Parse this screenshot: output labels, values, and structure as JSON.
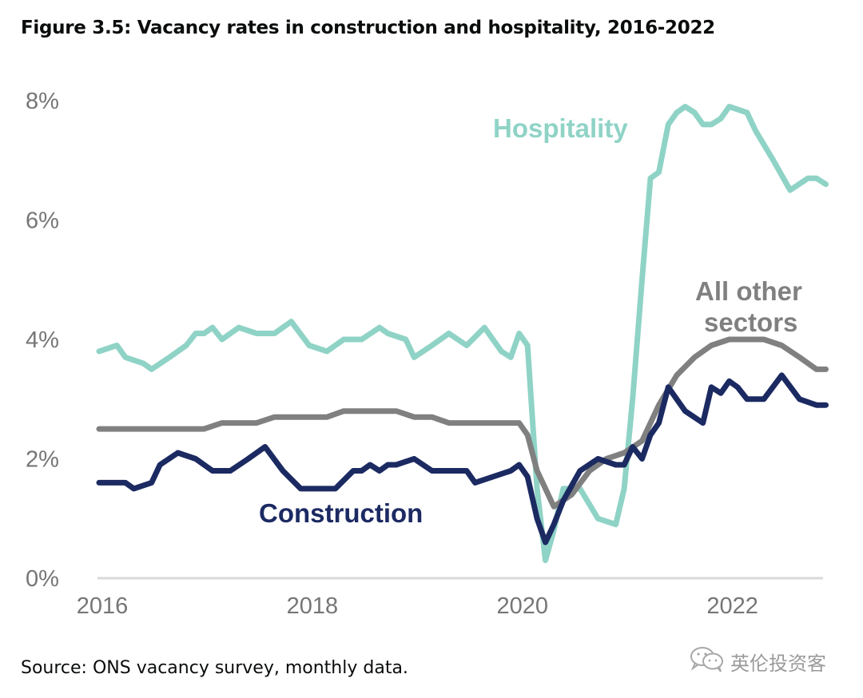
{
  "title": "Figure 3.5: Vacancy rates in construction and hospitality, 2016-2022",
  "source": "Source: ONS vacancy survey, monthly data.",
  "watermark": {
    "icon": "wechat-icon",
    "text": "英伦投资客"
  },
  "chart_data": {
    "type": "line",
    "title": "Figure 3.5: Vacancy rates in construction and hospitality, 2016-2022",
    "xlabel": "",
    "ylabel": "",
    "xlim": [
      2016.0,
      2023.0
    ],
    "ylim": [
      0,
      8
    ],
    "grid": false,
    "y_ticks": [
      0,
      2,
      4,
      6,
      8
    ],
    "y_tick_labels": [
      "0%",
      "2%",
      "4%",
      "6%",
      "8%"
    ],
    "x_ticks": [
      2016,
      2018,
      2020,
      2022
    ],
    "x_tick_labels": [
      "2016",
      "2018",
      "2020",
      "2022"
    ],
    "legend": "inline-labels",
    "series": [
      {
        "name": "Hospitality",
        "label": "Hospitality",
        "color": "#8fd3c6",
        "x": [
          2016.0,
          2016.17,
          2016.25,
          2016.42,
          2016.5,
          2016.67,
          2016.83,
          2016.92,
          2017.0,
          2017.08,
          2017.17,
          2017.33,
          2017.5,
          2017.67,
          2017.83,
          2018.0,
          2018.17,
          2018.33,
          2018.5,
          2018.67,
          2018.75,
          2018.92,
          2019.0,
          2019.17,
          2019.33,
          2019.5,
          2019.67,
          2019.83,
          2019.92,
          2020.0,
          2020.08,
          2020.17,
          2020.25,
          2020.33,
          2020.42,
          2020.58,
          2020.75,
          2020.92,
          2021.0,
          2021.08,
          2021.17,
          2021.25,
          2021.33,
          2021.42,
          2021.5,
          2021.58,
          2021.67,
          2021.75,
          2021.83,
          2021.92,
          2022.0,
          2022.17,
          2022.25,
          2022.42,
          2022.58,
          2022.75,
          2022.83,
          2022.92
        ],
        "values": [
          3.8,
          3.9,
          3.7,
          3.6,
          3.5,
          3.7,
          3.9,
          4.1,
          4.1,
          4.2,
          4.0,
          4.2,
          4.1,
          4.1,
          4.3,
          3.9,
          3.8,
          4.0,
          4.0,
          4.2,
          4.1,
          4.0,
          3.7,
          3.9,
          4.1,
          3.9,
          4.2,
          3.8,
          3.7,
          4.1,
          3.9,
          1.5,
          0.3,
          0.8,
          1.5,
          1.5,
          1.0,
          0.9,
          1.5,
          3.0,
          5.0,
          6.7,
          6.8,
          7.6,
          7.8,
          7.9,
          7.8,
          7.6,
          7.6,
          7.7,
          7.9,
          7.8,
          7.5,
          7.0,
          6.5,
          6.7,
          6.7,
          6.6
        ]
      },
      {
        "name": "All other sectors",
        "label": "All other sectors",
        "color": "#808080",
        "x": [
          2016.0,
          2016.17,
          2016.33,
          2016.5,
          2016.67,
          2016.83,
          2017.0,
          2017.17,
          2017.33,
          2017.5,
          2017.67,
          2017.83,
          2018.0,
          2018.17,
          2018.33,
          2018.5,
          2018.67,
          2018.83,
          2019.0,
          2019.17,
          2019.33,
          2019.5,
          2019.67,
          2019.83,
          2020.0,
          2020.08,
          2020.17,
          2020.33,
          2020.5,
          2020.67,
          2020.83,
          2021.0,
          2021.17,
          2021.33,
          2021.5,
          2021.67,
          2021.83,
          2022.0,
          2022.17,
          2022.33,
          2022.5,
          2022.67,
          2022.83,
          2022.92
        ],
        "values": [
          2.5,
          2.5,
          2.5,
          2.5,
          2.5,
          2.5,
          2.5,
          2.6,
          2.6,
          2.6,
          2.7,
          2.7,
          2.7,
          2.7,
          2.8,
          2.8,
          2.8,
          2.8,
          2.7,
          2.7,
          2.6,
          2.6,
          2.6,
          2.6,
          2.6,
          2.4,
          1.8,
          1.2,
          1.4,
          1.8,
          2.0,
          2.1,
          2.3,
          2.9,
          3.4,
          3.7,
          3.9,
          4.0,
          4.0,
          4.0,
          3.9,
          3.7,
          3.5,
          3.5
        ]
      },
      {
        "name": "Construction",
        "label": "Construction",
        "color": "#1c2a62",
        "x": [
          2016.0,
          2016.25,
          2016.33,
          2016.5,
          2016.58,
          2016.75,
          2016.92,
          2017.08,
          2017.25,
          2017.42,
          2017.58,
          2017.75,
          2017.92,
          2018.08,
          2018.25,
          2018.42,
          2018.5,
          2018.58,
          2018.67,
          2018.75,
          2018.83,
          2019.0,
          2019.17,
          2019.33,
          2019.5,
          2019.58,
          2019.75,
          2019.92,
          2020.0,
          2020.08,
          2020.17,
          2020.25,
          2020.33,
          2020.42,
          2020.58,
          2020.75,
          2020.92,
          2021.0,
          2021.08,
          2021.17,
          2021.25,
          2021.33,
          2021.42,
          2021.58,
          2021.75,
          2021.83,
          2021.92,
          2022.0,
          2022.08,
          2022.17,
          2022.25,
          2022.33,
          2022.5,
          2022.67,
          2022.83,
          2022.92
        ],
        "values": [
          1.6,
          1.6,
          1.5,
          1.6,
          1.9,
          2.1,
          2.0,
          1.8,
          1.8,
          2.0,
          2.2,
          1.8,
          1.5,
          1.5,
          1.5,
          1.8,
          1.8,
          1.9,
          1.8,
          1.9,
          1.9,
          2.0,
          1.8,
          1.8,
          1.8,
          1.6,
          1.7,
          1.8,
          1.9,
          1.7,
          1.0,
          0.6,
          0.9,
          1.3,
          1.8,
          2.0,
          1.9,
          1.9,
          2.2,
          2.0,
          2.4,
          2.6,
          3.2,
          2.8,
          2.6,
          3.2,
          3.1,
          3.3,
          3.2,
          3.0,
          3.0,
          3.0,
          3.4,
          3.0,
          2.9,
          2.9
        ]
      }
    ]
  }
}
